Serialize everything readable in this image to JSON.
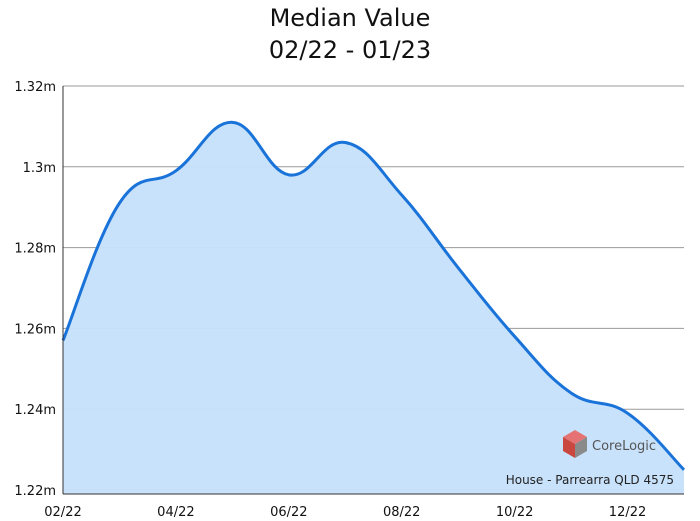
{
  "chart_data": {
    "type": "area",
    "title": "Median Value",
    "subtitle": "02/22 - 01/23",
    "x": [
      "02/22",
      "03/22",
      "04/22",
      "05/22",
      "06/22",
      "07/22",
      "08/22",
      "09/22",
      "10/22",
      "11/22",
      "12/22",
      "01/23"
    ],
    "x_ticks": [
      "02/22",
      "04/22",
      "06/22",
      "08/22",
      "10/22",
      "12/22"
    ],
    "y_ticks": [
      "1.22m",
      "1.24m",
      "1.26m",
      "1.28m",
      "1.3m",
      "1.32m"
    ],
    "series": [
      {
        "values": [
          1.258,
          1.292,
          1.3,
          1.312,
          1.299,
          1.307,
          1.294,
          1.276,
          1.259,
          1.245,
          1.24,
          1.226
        ]
      }
    ],
    "ylim": [
      1.22,
      1.32
    ],
    "grid": true,
    "colors": {
      "line": "#1a73d9",
      "fill": "#c6e0fb",
      "grid": "#9a9a9a",
      "axis": "#333333"
    },
    "legend": false
  },
  "brand": {
    "name": "CoreLogic",
    "icon": "corelogic-cube-logo",
    "color": "#d9534f"
  },
  "annotation": "House - Parrearra QLD 4575"
}
